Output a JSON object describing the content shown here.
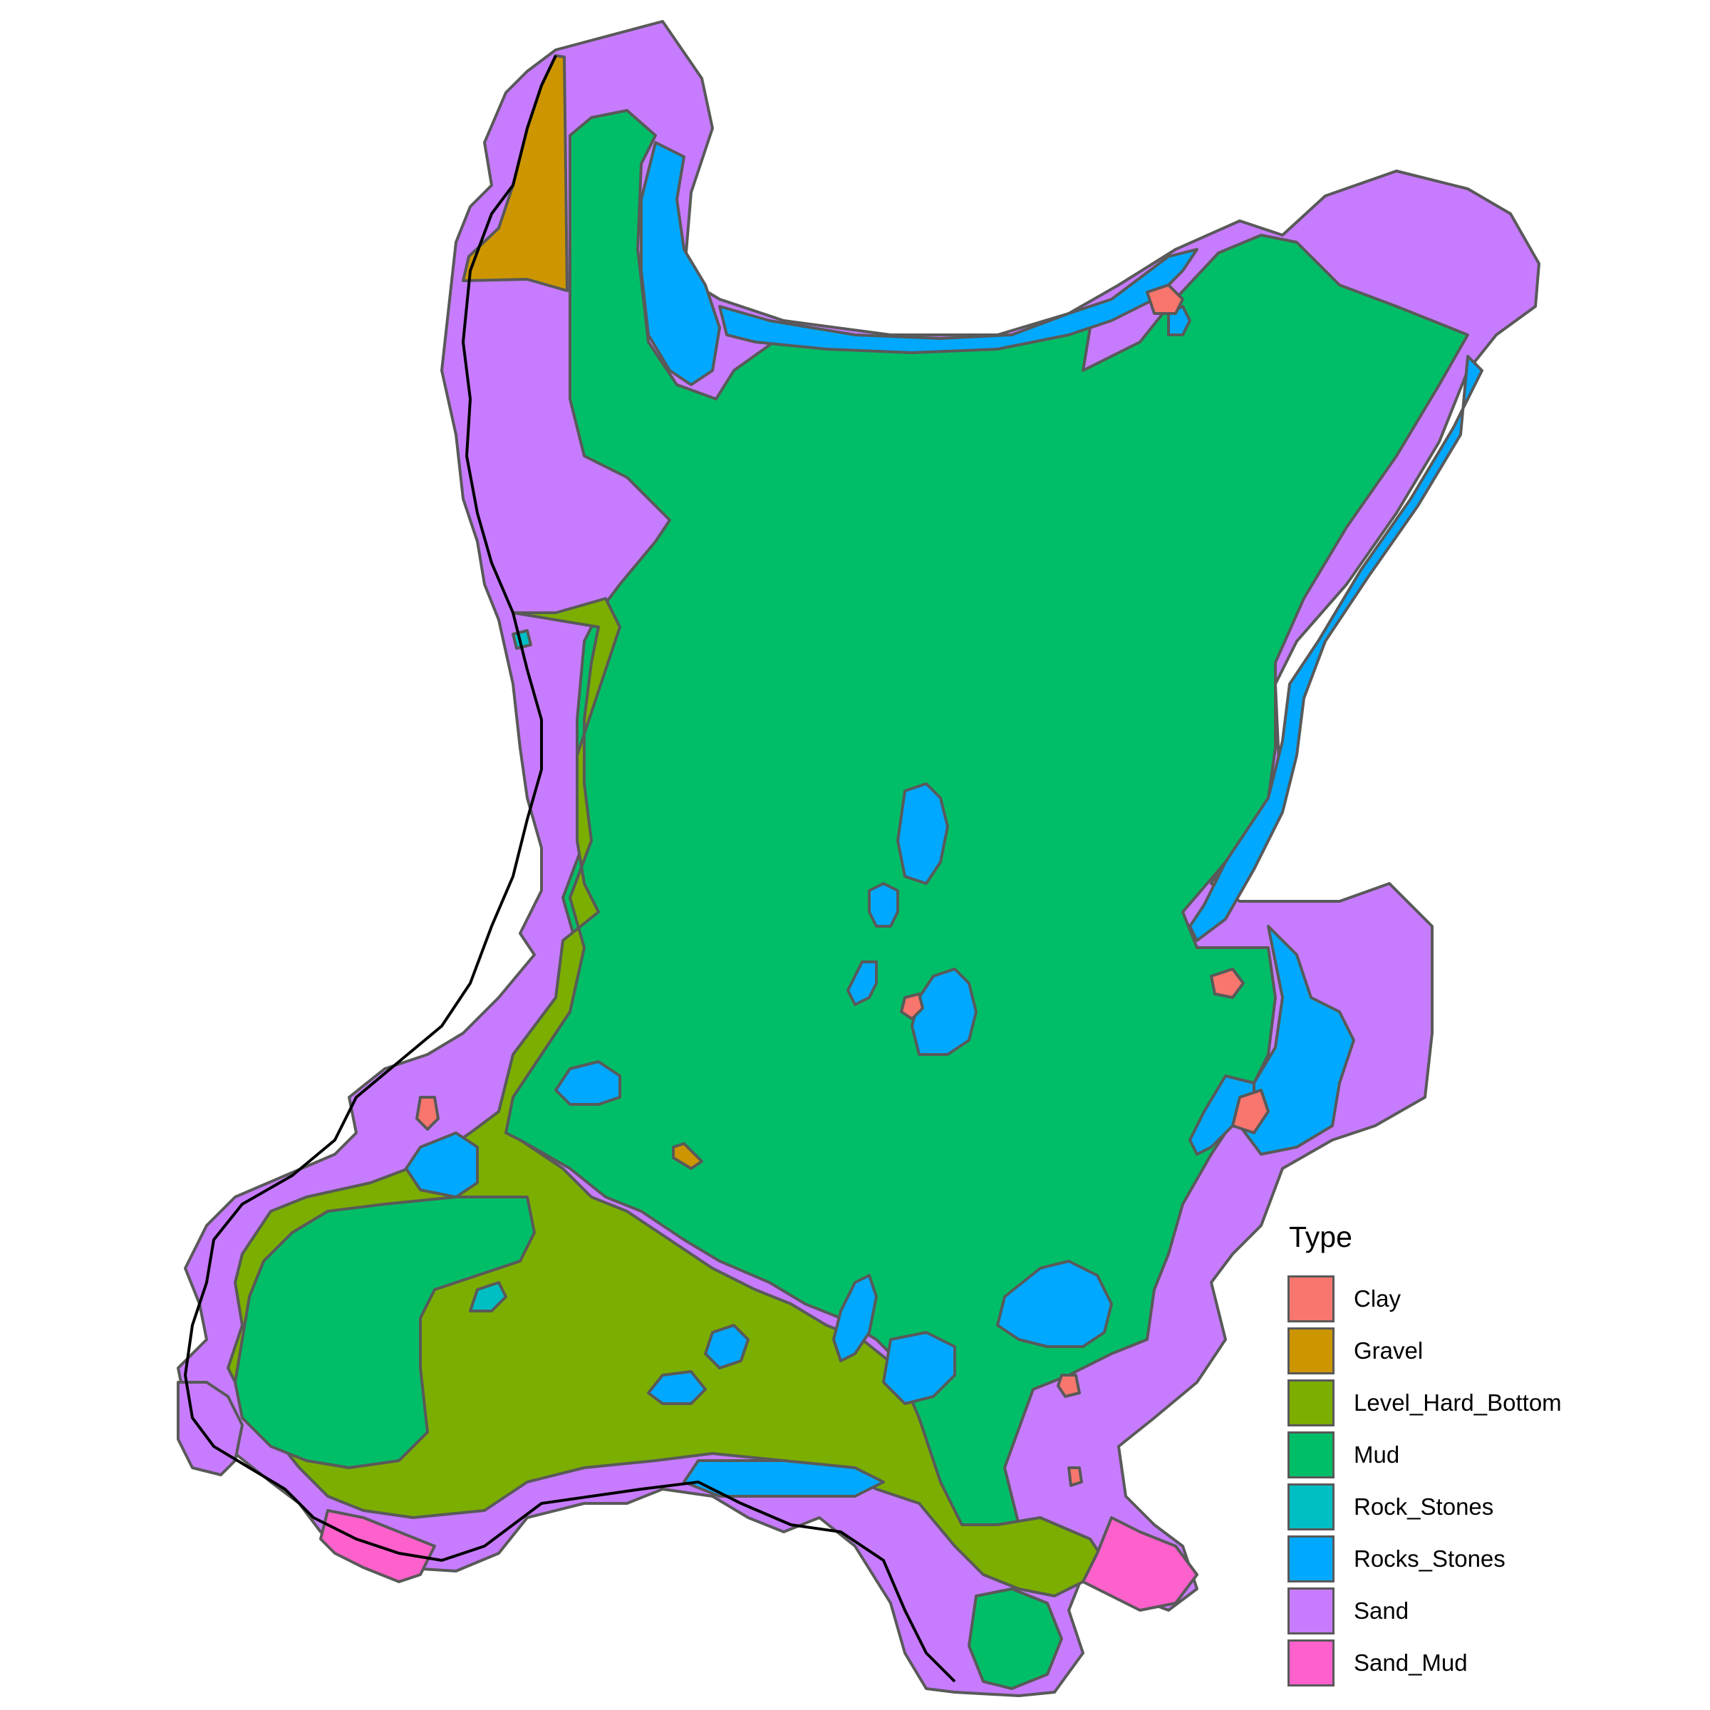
{
  "legend": {
    "title": "Type",
    "items": [
      {
        "label": "Clay",
        "color": "#F8766D"
      },
      {
        "label": "Gravel",
        "color": "#CD9600"
      },
      {
        "label": "Level_Hard_Bottom",
        "color": "#7CAE00"
      },
      {
        "label": "Mud",
        "color": "#00BE67"
      },
      {
        "label": "Rock_Stones",
        "color": "#00BFC4"
      },
      {
        "label": "Rocks_Stones",
        "color": "#00A9FF"
      },
      {
        "label": "Sand",
        "color": "#C77CFF"
      },
      {
        "label": "Sand_Mud",
        "color": "#FF61CC"
      }
    ]
  },
  "map": {
    "polygon_outline_color": "#595959",
    "coastline_color": "#000000"
  }
}
